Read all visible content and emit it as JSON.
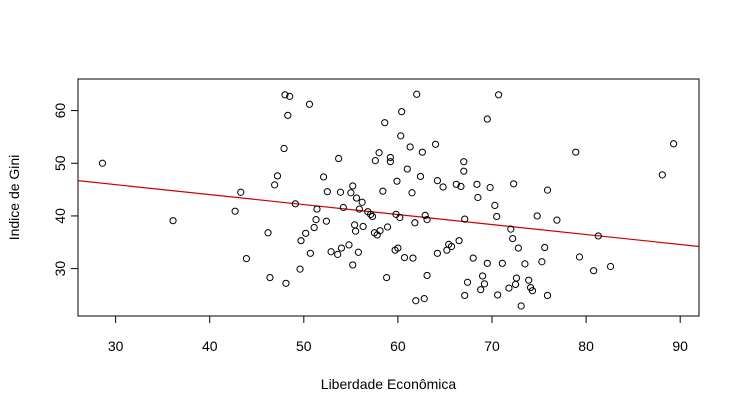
{
  "chart_data": {
    "type": "scatter",
    "title": "",
    "xlabel": "Liberdade Econômica",
    "ylabel": "Indice de Gini",
    "xlim": [
      26,
      92
    ],
    "ylim": [
      21,
      66
    ],
    "x_ticks": [
      30,
      40,
      50,
      60,
      70,
      80,
      90
    ],
    "y_ticks": [
      30,
      40,
      50,
      60
    ],
    "grid": false,
    "legend": "none",
    "point_style": "open-circle",
    "colors": {
      "points": "#000000",
      "regression_line": "#cc0000",
      "frame": "#000000"
    },
    "regression_line": {
      "x": [
        26,
        92
      ],
      "y": [
        46.7,
        34.2
      ]
    },
    "points": [
      [
        28.6,
        50.0
      ],
      [
        36.1,
        39.1
      ],
      [
        42.7,
        40.9
      ],
      [
        43.3,
        44.5
      ],
      [
        43.9,
        31.9
      ],
      [
        46.2,
        36.8
      ],
      [
        46.4,
        28.3
      ],
      [
        46.9,
        45.9
      ],
      [
        47.2,
        47.6
      ],
      [
        47.9,
        52.8
      ],
      [
        48.0,
        63.0
      ],
      [
        48.1,
        27.2
      ],
      [
        48.3,
        59.1
      ],
      [
        48.5,
        62.7
      ],
      [
        49.1,
        42.3
      ],
      [
        49.6,
        29.9
      ],
      [
        49.7,
        35.3
      ],
      [
        50.2,
        36.7
      ],
      [
        50.6,
        61.2
      ],
      [
        50.7,
        32.9
      ],
      [
        51.1,
        37.8
      ],
      [
        51.3,
        39.3
      ],
      [
        51.4,
        41.3
      ],
      [
        52.1,
        47.4
      ],
      [
        52.4,
        39.0
      ],
      [
        52.5,
        44.6
      ],
      [
        52.9,
        33.2
      ],
      [
        53.6,
        32.7
      ],
      [
        53.7,
        50.9
      ],
      [
        53.9,
        44.5
      ],
      [
        54.0,
        33.9
      ],
      [
        54.2,
        41.6
      ],
      [
        54.8,
        34.5
      ],
      [
        55.0,
        44.4
      ],
      [
        55.2,
        45.7
      ],
      [
        55.2,
        30.7
      ],
      [
        55.4,
        38.3
      ],
      [
        55.5,
        37.1
      ],
      [
        55.6,
        43.4
      ],
      [
        55.8,
        33.1
      ],
      [
        55.9,
        41.3
      ],
      [
        56.2,
        42.6
      ],
      [
        56.3,
        38.0
      ],
      [
        56.8,
        40.8
      ],
      [
        57.1,
        40.3
      ],
      [
        57.3,
        39.9
      ],
      [
        57.6,
        50.5
      ],
      [
        57.5,
        36.8
      ],
      [
        57.8,
        36.4
      ],
      [
        58.0,
        52.0
      ],
      [
        58.1,
        37.2
      ],
      [
        58.4,
        44.7
      ],
      [
        58.6,
        57.7
      ],
      [
        58.8,
        28.3
      ],
      [
        58.9,
        37.9
      ],
      [
        59.2,
        51.1
      ],
      [
        59.2,
        50.3
      ],
      [
        59.7,
        33.5
      ],
      [
        59.8,
        40.3
      ],
      [
        59.9,
        46.6
      ],
      [
        60.0,
        33.9
      ],
      [
        60.2,
        39.7
      ],
      [
        60.3,
        55.2
      ],
      [
        60.4,
        59.8
      ],
      [
        60.7,
        32.1
      ],
      [
        61.0,
        48.9
      ],
      [
        61.3,
        53.1
      ],
      [
        61.5,
        44.4
      ],
      [
        61.6,
        32.0
      ],
      [
        61.8,
        38.7
      ],
      [
        61.9,
        23.9
      ],
      [
        62.0,
        63.1
      ],
      [
        62.4,
        47.5
      ],
      [
        62.6,
        52.1
      ],
      [
        62.8,
        24.3
      ],
      [
        62.9,
        40.1
      ],
      [
        63.1,
        39.3
      ],
      [
        63.1,
        28.7
      ],
      [
        64.0,
        53.6
      ],
      [
        64.2,
        46.7
      ],
      [
        64.2,
        32.9
      ],
      [
        64.8,
        45.5
      ],
      [
        65.2,
        33.5
      ],
      [
        65.4,
        34.6
      ],
      [
        65.7,
        34.2
      ],
      [
        66.2,
        46.0
      ],
      [
        66.5,
        35.3
      ],
      [
        66.7,
        45.6
      ],
      [
        67.0,
        50.3
      ],
      [
        67.0,
        48.5
      ],
      [
        67.1,
        39.4
      ],
      [
        67.1,
        24.9
      ],
      [
        67.4,
        27.4
      ],
      [
        68.0,
        32.0
      ],
      [
        68.4,
        46.0
      ],
      [
        68.5,
        43.5
      ],
      [
        68.8,
        26.0
      ],
      [
        69.0,
        28.6
      ],
      [
        69.2,
        27.1
      ],
      [
        69.5,
        31.0
      ],
      [
        69.5,
        58.4
      ],
      [
        69.8,
        45.4
      ],
      [
        70.3,
        42.0
      ],
      [
        70.5,
        39.9
      ],
      [
        70.6,
        25.0
      ],
      [
        70.7,
        63.0
      ],
      [
        71.1,
        31.0
      ],
      [
        71.8,
        26.3
      ],
      [
        72.0,
        37.5
      ],
      [
        72.2,
        35.7
      ],
      [
        72.3,
        46.1
      ],
      [
        72.5,
        27.0
      ],
      [
        72.6,
        28.2
      ],
      [
        72.8,
        33.9
      ],
      [
        73.1,
        22.9
      ],
      [
        73.5,
        30.9
      ],
      [
        73.9,
        27.8
      ],
      [
        74.1,
        26.4
      ],
      [
        74.3,
        25.8
      ],
      [
        74.8,
        40.0
      ],
      [
        75.3,
        31.3
      ],
      [
        75.6,
        34.0
      ],
      [
        75.9,
        44.9
      ],
      [
        75.9,
        24.9
      ],
      [
        76.9,
        39.2
      ],
      [
        78.9,
        52.1
      ],
      [
        79.3,
        32.2
      ],
      [
        80.8,
        29.6
      ],
      [
        81.3,
        36.2
      ],
      [
        82.6,
        30.4
      ],
      [
        88.1,
        47.8
      ],
      [
        89.3,
        53.7
      ]
    ]
  }
}
